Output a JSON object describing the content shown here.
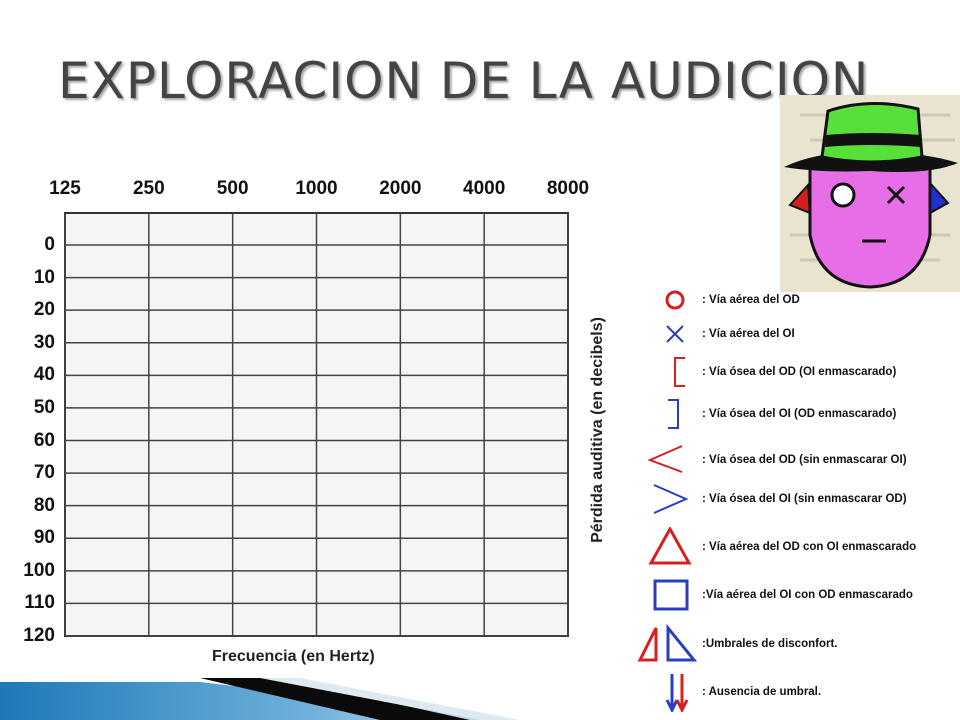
{
  "slide": {
    "title": "EXPLORACION DE LA AUDICION"
  },
  "chart_data": {
    "type": "table",
    "frequencies": [
      "125",
      "250",
      "500",
      "1000",
      "2000",
      "4000",
      "8000"
    ],
    "db_levels": [
      "0",
      "10",
      "20",
      "30",
      "40",
      "50",
      "60",
      "70",
      "80",
      "90",
      "100",
      "110",
      "120"
    ],
    "xlabel": "Frecuencia (en Hertz)",
    "ylabel": "Pérdida auditiva (en decibels)",
    "grid": true
  },
  "legend": [
    {
      "icon": "circle-icon",
      "color": "#d62020",
      "text": ": Vía aérea del OD"
    },
    {
      "icon": "x-icon",
      "color": "#2a3fbf",
      "text": ": Vía aérea del OI"
    },
    {
      "icon": "left-bracket-icon",
      "color": "#d62020",
      "text": ": Vía ósea del OD (OI enmascarado)"
    },
    {
      "icon": "right-bracket-icon",
      "color": "#2a3fbf",
      "text": ": Vía ósea del OI (OD enmascarado)"
    },
    {
      "icon": "less-than-icon",
      "color": "#d62020",
      "text": ": Vía ósea del OD (sin enmascarar OI)"
    },
    {
      "icon": "greater-than-icon",
      "color": "#2a3fbf",
      "text": ": Vía ósea del OI (sin enmascarar OD)"
    },
    {
      "icon": "triangle-icon",
      "color": "#d62020",
      "text": ": Vía aérea del OD con OI enmascarado"
    },
    {
      "icon": "square-icon",
      "color": "#2a3fbf",
      "text": ":Vía aérea del OI con OD enmascarado"
    },
    {
      "icon": "half-triangles-icon",
      "color": "#d62020",
      "text": ":Umbrales de disconfort."
    },
    {
      "icon": "down-arrows-icon",
      "color": "#2a3fbf",
      "text": ": Ausencia de umbral."
    }
  ],
  "colors": {
    "od": "#d62020",
    "oi": "#2a3fbf",
    "title": "#444444",
    "face": "#e86ee8",
    "hat": "#58e03a"
  }
}
